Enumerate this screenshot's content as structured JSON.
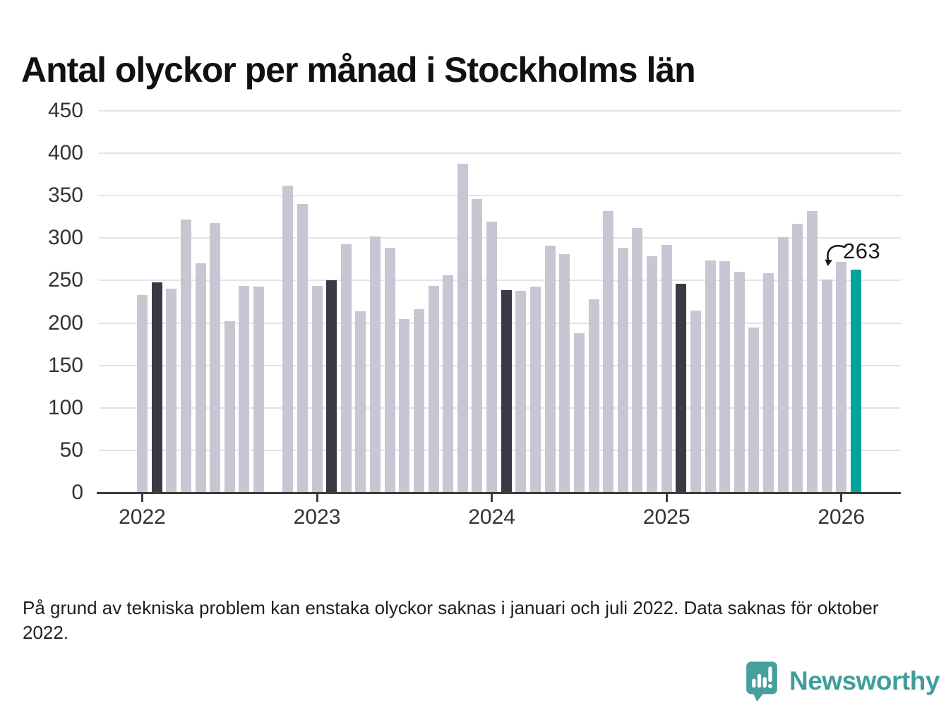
{
  "header": {
    "title": "Antal olyckor per månad i Stockholms län"
  },
  "footnote": {
    "text": "På grund av tekniska problem kan enstaka olyckor saknas i januari och juli 2022. Data saknas för oktober 2022."
  },
  "logo": {
    "wordmark": "Newsworthy",
    "icon": "speech-bubble-bar-chart-icon",
    "color": "#3f9e9c"
  },
  "colors": {
    "bar_default": "#c9c6d3",
    "bar_highlight_dark": "#3c3947",
    "bar_current": "#00a49a",
    "gridline": "#e4e3e7",
    "axis": "#3d3d3d"
  },
  "chart_data": {
    "type": "bar",
    "title": "Antal olyckor per månad i Stockholms län",
    "xlabel": "",
    "ylabel": "",
    "ylim": [
      0,
      450
    ],
    "yticks": [
      0,
      50,
      100,
      150,
      200,
      250,
      300,
      350,
      400,
      450
    ],
    "grid": "horizontal",
    "x_year_ticks": [
      "2022",
      "2023",
      "2024",
      "2025",
      "2026"
    ],
    "annotation": {
      "text": "263",
      "month": "2026-02"
    },
    "missing_months": [
      "2022-10"
    ],
    "points": [
      {
        "month": "2022-01",
        "value": 233,
        "type": "normal"
      },
      {
        "month": "2022-02",
        "value": 248,
        "type": "dark"
      },
      {
        "month": "2022-03",
        "value": 240,
        "type": "normal"
      },
      {
        "month": "2022-04",
        "value": 322,
        "type": "normal"
      },
      {
        "month": "2022-05",
        "value": 270,
        "type": "normal"
      },
      {
        "month": "2022-06",
        "value": 318,
        "type": "normal"
      },
      {
        "month": "2022-07",
        "value": 202,
        "type": "normal"
      },
      {
        "month": "2022-08",
        "value": 244,
        "type": "normal"
      },
      {
        "month": "2022-09",
        "value": 243,
        "type": "normal"
      },
      {
        "month": "2022-10",
        "value": null,
        "type": "missing"
      },
      {
        "month": "2022-11",
        "value": 362,
        "type": "normal"
      },
      {
        "month": "2022-12",
        "value": 340,
        "type": "normal"
      },
      {
        "month": "2023-01",
        "value": 244,
        "type": "normal"
      },
      {
        "month": "2023-02",
        "value": 250,
        "type": "dark"
      },
      {
        "month": "2023-03",
        "value": 293,
        "type": "normal"
      },
      {
        "month": "2023-04",
        "value": 214,
        "type": "normal"
      },
      {
        "month": "2023-05",
        "value": 302,
        "type": "normal"
      },
      {
        "month": "2023-06",
        "value": 289,
        "type": "normal"
      },
      {
        "month": "2023-07",
        "value": 205,
        "type": "normal"
      },
      {
        "month": "2023-08",
        "value": 216,
        "type": "normal"
      },
      {
        "month": "2023-09",
        "value": 244,
        "type": "normal"
      },
      {
        "month": "2023-10",
        "value": 256,
        "type": "normal"
      },
      {
        "month": "2023-11",
        "value": 388,
        "type": "normal"
      },
      {
        "month": "2023-12",
        "value": 346,
        "type": "normal"
      },
      {
        "month": "2024-01",
        "value": 319,
        "type": "normal"
      },
      {
        "month": "2024-02",
        "value": 239,
        "type": "dark"
      },
      {
        "month": "2024-03",
        "value": 238,
        "type": "normal"
      },
      {
        "month": "2024-04",
        "value": 243,
        "type": "normal"
      },
      {
        "month": "2024-05",
        "value": 291,
        "type": "normal"
      },
      {
        "month": "2024-06",
        "value": 281,
        "type": "normal"
      },
      {
        "month": "2024-07",
        "value": 188,
        "type": "normal"
      },
      {
        "month": "2024-08",
        "value": 228,
        "type": "normal"
      },
      {
        "month": "2024-09",
        "value": 332,
        "type": "normal"
      },
      {
        "month": "2024-10",
        "value": 289,
        "type": "normal"
      },
      {
        "month": "2024-11",
        "value": 312,
        "type": "normal"
      },
      {
        "month": "2024-12",
        "value": 279,
        "type": "normal"
      },
      {
        "month": "2025-01",
        "value": 292,
        "type": "normal"
      },
      {
        "month": "2025-02",
        "value": 246,
        "type": "dark"
      },
      {
        "month": "2025-03",
        "value": 215,
        "type": "normal"
      },
      {
        "month": "2025-04",
        "value": 274,
        "type": "normal"
      },
      {
        "month": "2025-05",
        "value": 273,
        "type": "normal"
      },
      {
        "month": "2025-06",
        "value": 260,
        "type": "normal"
      },
      {
        "month": "2025-07",
        "value": 195,
        "type": "normal"
      },
      {
        "month": "2025-08",
        "value": 259,
        "type": "normal"
      },
      {
        "month": "2025-09",
        "value": 301,
        "type": "normal"
      },
      {
        "month": "2025-10",
        "value": 317,
        "type": "normal"
      },
      {
        "month": "2025-11",
        "value": 332,
        "type": "normal"
      },
      {
        "month": "2025-12",
        "value": 251,
        "type": "normal"
      },
      {
        "month": "2026-01",
        "value": 272,
        "type": "normal"
      },
      {
        "month": "2026-02",
        "value": 263,
        "type": "current"
      }
    ]
  }
}
